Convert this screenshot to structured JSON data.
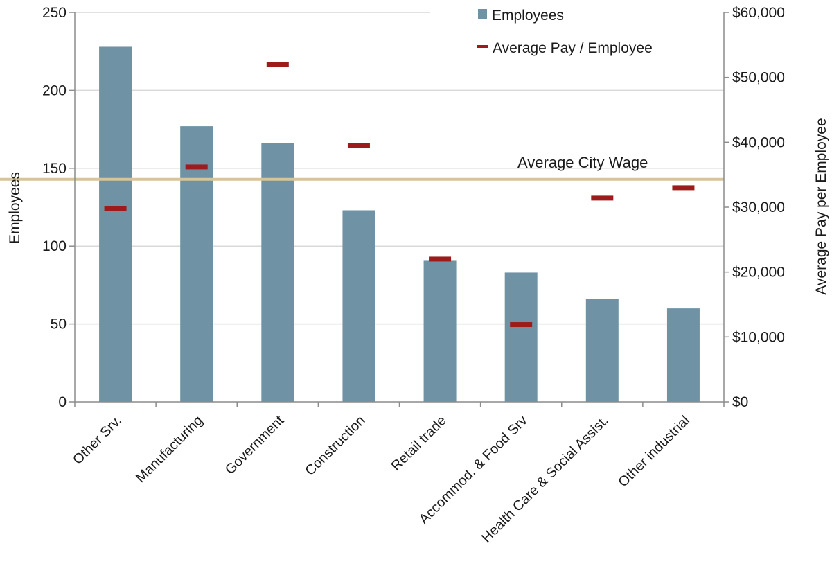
{
  "chart_data": {
    "type": "bar",
    "categories": [
      "Other Srv.",
      "Manufacturing",
      "Government",
      "Construction",
      "Retail trade",
      "Accommod. & Food Srv",
      "Health Care & Social Assist.",
      "Other industrial"
    ],
    "series": [
      {
        "name": "Employees",
        "axis": "left",
        "kind": "bar",
        "values": [
          228,
          177,
          166,
          123,
          91,
          83,
          66,
          60
        ]
      },
      {
        "name": "Average Pay / Employee",
        "axis": "right",
        "kind": "marker",
        "values": [
          29800,
          36200,
          52000,
          39500,
          22000,
          11900,
          31400,
          33000
        ]
      }
    ],
    "ylabel": "Employees",
    "ylabel_right": "Average Pay per Employee",
    "ylim": [
      0,
      250
    ],
    "ylim_right": [
      0,
      60000
    ],
    "yticks": [
      "0",
      "50",
      "100",
      "150",
      "200",
      "250"
    ],
    "yticks_right": [
      "$0",
      "$10,000",
      "$20,000",
      "$30,000",
      "$40,000",
      "$50,000",
      "$60,000"
    ],
    "reference_line": {
      "label": "Average City Wage",
      "value": 34300,
      "axis": "right"
    },
    "grid": true,
    "legend": "top-right",
    "colors": {
      "bar": "#6f93a5",
      "marker": "#9e1b1b",
      "reference": "#d6c49a",
      "grid": "#d9d9d9",
      "axis": "#8c8c8c"
    }
  }
}
